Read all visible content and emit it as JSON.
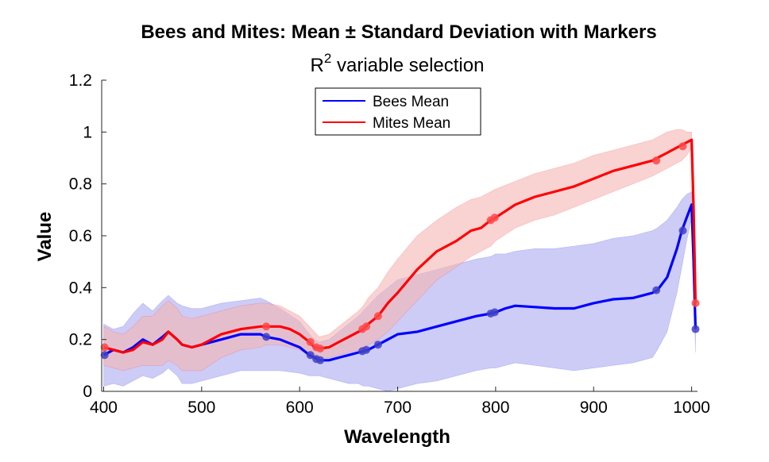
{
  "chart_data": {
    "type": "line",
    "title": "Bees and Mites: Mean ± Standard Deviation with Markers",
    "subtitle_base": "R",
    "subtitle_sup": "2",
    "subtitle_rest": " variable selection",
    "xlabel": "Wavelength",
    "ylabel": "Value",
    "xlim": [
      398,
      1006
    ],
    "ylim": [
      0,
      1.2
    ],
    "xticks": [
      400,
      500,
      600,
      700,
      800,
      900,
      1000
    ],
    "xtick_labels": [
      "400",
      "500",
      "600",
      "700",
      "800",
      "900",
      "1000"
    ],
    "yticks": [
      0,
      0.2,
      0.4,
      0.6,
      0.8,
      1.0,
      1.2
    ],
    "ytick_labels": [
      "0",
      "0.2",
      "0.4",
      "0.6",
      "0.8",
      "1",
      "1.2"
    ],
    "legend_position": "top-center",
    "series": [
      {
        "name": "Bees Mean",
        "color": "#0000ff",
        "band_color": "#aaaaf0",
        "x": [
          400,
          410,
          420,
          430,
          440,
          450,
          460,
          466,
          475,
          480,
          490,
          500,
          520,
          540,
          560,
          566,
          580,
          600,
          610,
          615,
          620,
          630,
          640,
          650,
          660,
          665,
          670,
          680,
          690,
          700,
          720,
          740,
          760,
          780,
          795,
          800,
          810,
          820,
          840,
          860,
          880,
          900,
          920,
          940,
          960,
          965,
          975,
          985,
          990,
          995,
          1000,
          1002,
          1004
        ],
        "mean": [
          0.14,
          0.16,
          0.15,
          0.17,
          0.2,
          0.18,
          0.21,
          0.23,
          0.2,
          0.18,
          0.17,
          0.18,
          0.2,
          0.22,
          0.22,
          0.21,
          0.2,
          0.17,
          0.14,
          0.13,
          0.12,
          0.12,
          0.13,
          0.14,
          0.15,
          0.155,
          0.16,
          0.18,
          0.2,
          0.22,
          0.23,
          0.25,
          0.27,
          0.29,
          0.3,
          0.305,
          0.32,
          0.33,
          0.325,
          0.32,
          0.32,
          0.34,
          0.355,
          0.36,
          0.38,
          0.39,
          0.44,
          0.55,
          0.62,
          0.67,
          0.72,
          0.5,
          0.24
        ],
        "upper": [
          0.26,
          0.24,
          0.25,
          0.3,
          0.34,
          0.31,
          0.35,
          0.37,
          0.34,
          0.33,
          0.32,
          0.32,
          0.34,
          0.35,
          0.36,
          0.35,
          0.32,
          0.27,
          0.22,
          0.2,
          0.19,
          0.2,
          0.23,
          0.26,
          0.29,
          0.31,
          0.33,
          0.37,
          0.4,
          0.43,
          0.45,
          0.47,
          0.49,
          0.51,
          0.52,
          0.53,
          0.53,
          0.54,
          0.55,
          0.55,
          0.56,
          0.57,
          0.59,
          0.6,
          0.62,
          0.63,
          0.66,
          0.71,
          0.74,
          0.76,
          0.77,
          0.6,
          0.33
        ],
        "lower": [
          0.02,
          0.03,
          0.02,
          0.04,
          0.06,
          0.05,
          0.07,
          0.09,
          0.06,
          0.03,
          0.03,
          0.04,
          0.06,
          0.08,
          0.08,
          0.08,
          0.08,
          0.07,
          0.06,
          0.06,
          0.06,
          0.05,
          0.04,
          0.03,
          0.03,
          0.02,
          0.02,
          0.01,
          0.0,
          0.01,
          0.03,
          0.04,
          0.06,
          0.08,
          0.09,
          0.09,
          0.1,
          0.11,
          0.1,
          0.09,
          0.08,
          0.09,
          0.1,
          0.11,
          0.13,
          0.16,
          0.23,
          0.38,
          0.48,
          0.58,
          0.67,
          0.4,
          0.15
        ],
        "markers": [
          [
            401,
            0.14
          ],
          [
            566,
            0.21
          ],
          [
            611,
            0.14
          ],
          [
            617,
            0.125
          ],
          [
            621,
            0.12
          ],
          [
            664,
            0.155
          ],
          [
            668,
            0.16
          ],
          [
            680,
            0.18
          ],
          [
            795,
            0.3
          ],
          [
            799,
            0.305
          ],
          [
            964,
            0.39
          ],
          [
            991,
            0.62
          ],
          [
            1004,
            0.24
          ]
        ]
      },
      {
        "name": "Mites Mean",
        "color": "#ff0000",
        "band_color": "#f5b4b4",
        "x": [
          400,
          410,
          420,
          430,
          440,
          450,
          460,
          466,
          475,
          480,
          490,
          500,
          520,
          540,
          560,
          566,
          580,
          590,
          600,
          610,
          615,
          620,
          630,
          640,
          650,
          660,
          665,
          670,
          680,
          690,
          700,
          720,
          740,
          760,
          775,
          785,
          795,
          800,
          820,
          840,
          860,
          880,
          900,
          920,
          940,
          960,
          965,
          975,
          985,
          990,
          995,
          1000,
          1002,
          1004
        ],
        "mean": [
          0.17,
          0.16,
          0.15,
          0.16,
          0.19,
          0.18,
          0.2,
          0.23,
          0.2,
          0.18,
          0.17,
          0.18,
          0.22,
          0.24,
          0.25,
          0.25,
          0.25,
          0.24,
          0.22,
          0.19,
          0.17,
          0.165,
          0.17,
          0.19,
          0.21,
          0.23,
          0.24,
          0.26,
          0.29,
          0.34,
          0.38,
          0.47,
          0.54,
          0.58,
          0.62,
          0.63,
          0.66,
          0.67,
          0.72,
          0.75,
          0.77,
          0.79,
          0.82,
          0.85,
          0.87,
          0.89,
          0.9,
          0.92,
          0.94,
          0.95,
          0.96,
          0.97,
          0.7,
          0.34
        ],
        "upper": [
          0.25,
          0.23,
          0.22,
          0.25,
          0.29,
          0.29,
          0.33,
          0.35,
          0.32,
          0.29,
          0.28,
          0.29,
          0.31,
          0.33,
          0.34,
          0.34,
          0.33,
          0.31,
          0.29,
          0.25,
          0.23,
          0.21,
          0.22,
          0.25,
          0.28,
          0.31,
          0.33,
          0.36,
          0.4,
          0.46,
          0.51,
          0.6,
          0.66,
          0.71,
          0.74,
          0.75,
          0.77,
          0.78,
          0.81,
          0.84,
          0.86,
          0.88,
          0.91,
          0.93,
          0.95,
          0.97,
          0.98,
          1.0,
          1.01,
          1.01,
          1.0,
          1.0,
          0.74,
          0.36
        ],
        "lower": [
          0.1,
          0.09,
          0.08,
          0.09,
          0.1,
          0.1,
          0.1,
          0.12,
          0.1,
          0.08,
          0.08,
          0.08,
          0.13,
          0.16,
          0.17,
          0.18,
          0.18,
          0.17,
          0.16,
          0.14,
          0.13,
          0.13,
          0.13,
          0.14,
          0.15,
          0.16,
          0.17,
          0.18,
          0.2,
          0.23,
          0.27,
          0.35,
          0.43,
          0.48,
          0.52,
          0.54,
          0.56,
          0.58,
          0.63,
          0.66,
          0.68,
          0.71,
          0.74,
          0.77,
          0.8,
          0.83,
          0.84,
          0.86,
          0.88,
          0.89,
          0.91,
          0.94,
          0.66,
          0.32
        ],
        "markers": [
          [
            401,
            0.17
          ],
          [
            566,
            0.25
          ],
          [
            611,
            0.19
          ],
          [
            617,
            0.17
          ],
          [
            621,
            0.165
          ],
          [
            664,
            0.24
          ],
          [
            668,
            0.25
          ],
          [
            680,
            0.29
          ],
          [
            795,
            0.66
          ],
          [
            799,
            0.67
          ],
          [
            964,
            0.89
          ],
          [
            991,
            0.945
          ],
          [
            1004,
            0.34
          ]
        ]
      }
    ]
  }
}
